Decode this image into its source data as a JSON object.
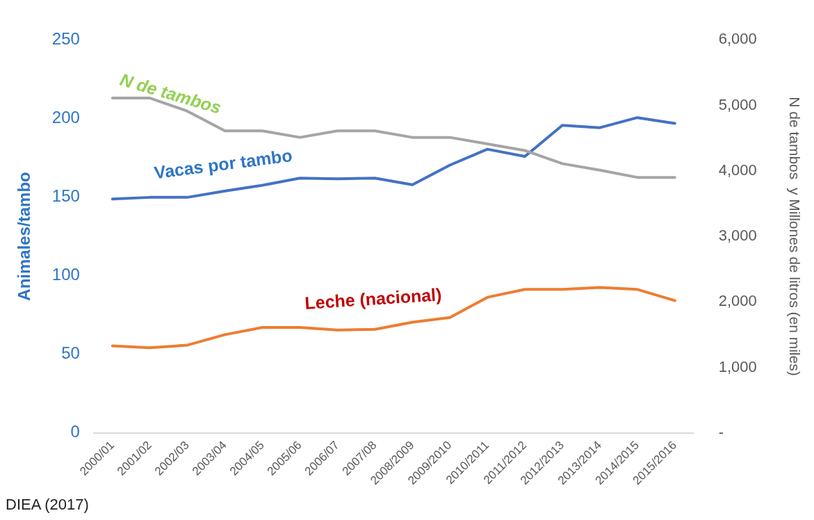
{
  "chart_data": {
    "type": "line",
    "categories": [
      "2000/01",
      "2001/02",
      "2002/03",
      "2003/04",
      "2004/05",
      "2005/06",
      "2006/07",
      "2007/08",
      "2008/2009",
      "2009/2010",
      "2010/2011",
      "2011/2012",
      "2012/2013",
      "2013/2014",
      "2014/2015",
      "2015/2016"
    ],
    "series": [
      {
        "name": "N de tambos",
        "color": "#a5a5a5",
        "axis": "y2",
        "values": [
          5110,
          5110,
          4910,
          4610,
          4610,
          4510,
          4610,
          4610,
          4510,
          4510,
          4410,
          4310,
          4110,
          4010,
          3900,
          3900
        ]
      },
      {
        "name": "Vacas por tambo",
        "color": "#4472c4",
        "values": [
          148.7,
          149.8,
          149.8,
          153.8,
          157.5,
          162,
          161.6,
          162,
          157.8,
          170.3,
          180.4,
          175.8,
          195.6,
          194.1,
          200.5,
          196.8
        ]
      },
      {
        "name": "Leche (nacional)",
        "color": "#ed7d31",
        "axis": "y2",
        "values": [
          1330,
          1300,
          1340,
          1500,
          1610,
          1610,
          1570,
          1580,
          1690,
          1760,
          2070,
          2190,
          2190,
          2220,
          2190,
          2020
        ]
      }
    ],
    "ylabel": "Animales/tambo",
    "y2label": "N de tambos  y Millones de litros (en miles)",
    "ylim": [
      0,
      250
    ],
    "yticks": [
      0,
      50,
      100,
      150,
      200,
      250
    ],
    "y2lim": [
      0,
      6000
    ],
    "y2ticks": [
      {
        "value": 0,
        "label": "-"
      },
      {
        "value": 1000,
        "label": "1,000"
      },
      {
        "value": 2000,
        "label": "2,000"
      },
      {
        "value": 3000,
        "label": "3,000"
      },
      {
        "value": 4000,
        "label": "4,000"
      },
      {
        "value": 5000,
        "label": "5,000"
      },
      {
        "value": 6000,
        "label": "6,000"
      }
    ],
    "grid": false,
    "legend": false,
    "marker": "none",
    "line_style": "solid",
    "annotations": [
      "DIEA (2017)"
    ]
  }
}
